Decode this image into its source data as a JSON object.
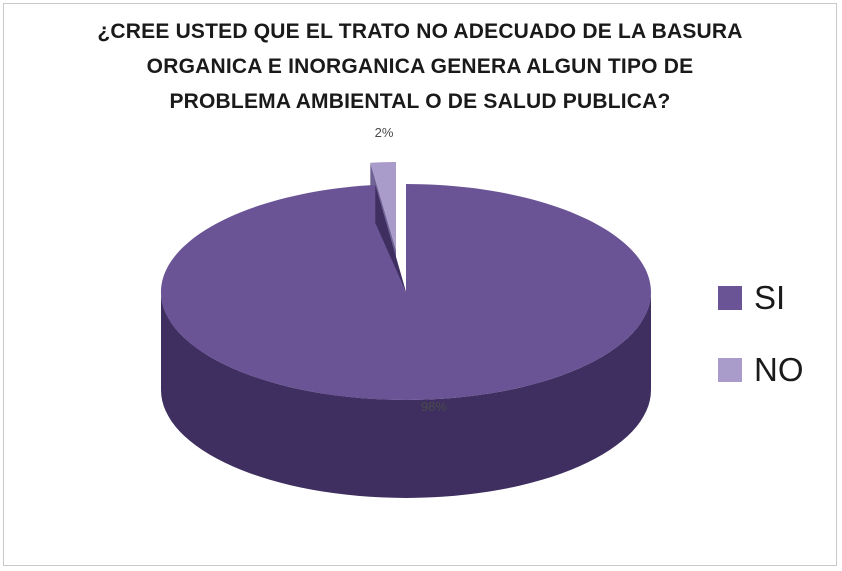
{
  "chart_data": {
    "type": "pie",
    "title_lines": [
      "¿CREE USTED QUE EL TRATO NO ADECUADO DE LA BASURA",
      "ORGANICA E INORGANICA GENERA ALGUN TIPO DE",
      "PROBLEMA AMBIENTAL O DE SALUD PUBLICA?"
    ],
    "slices": [
      {
        "label": "SI",
        "value": 98,
        "display": "98%",
        "color": "#6a5496"
      },
      {
        "label": "NO",
        "value": 2,
        "display": "2%",
        "color": "#a99bca"
      }
    ],
    "legend_position": "right",
    "style": "3d-exploded"
  },
  "colors": {
    "si_side": "#3e2f60",
    "no_side": "#6f6396",
    "frame_border": "#c9c9c9"
  }
}
